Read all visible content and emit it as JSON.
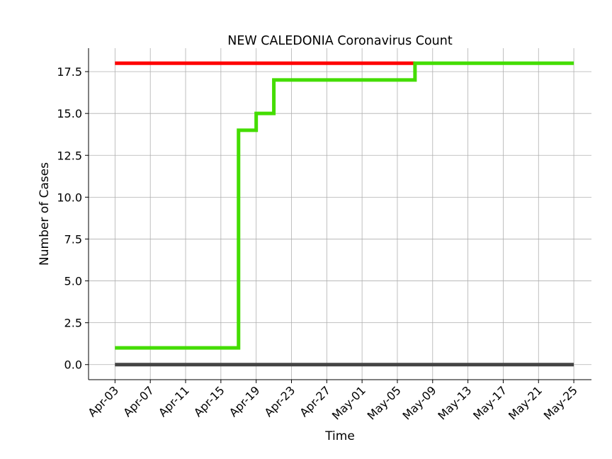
{
  "chart_data": {
    "type": "line",
    "title": "NEW CALEDONIA Coronavirus Count",
    "xlabel": "Time",
    "ylabel": "Number of Cases",
    "x_tick_labels": [
      "Apr-03",
      "Apr-07",
      "Apr-11",
      "Apr-15",
      "Apr-19",
      "Apr-23",
      "Apr-27",
      "May-01",
      "May-05",
      "May-09",
      "May-13",
      "May-17",
      "May-21",
      "May-25"
    ],
    "y_ticks": [
      0.0,
      2.5,
      5.0,
      7.5,
      10.0,
      12.5,
      15.0,
      17.5
    ],
    "y_tick_labels": [
      "0.0",
      "2.5",
      "5.0",
      "7.5",
      "10.0",
      "12.5",
      "15.0",
      "17.5"
    ],
    "ylim": [
      -0.9,
      18.9
    ],
    "xlim": [
      "2020-03-31",
      "2020-05-27"
    ],
    "grid": true,
    "series": [
      {
        "color": "#ff0000",
        "step": "post",
        "points": [
          [
            "2020-04-03",
            18
          ],
          [
            "2020-05-07",
            18
          ]
        ]
      },
      {
        "color": "#44dd00",
        "step": "post",
        "points": [
          [
            "2020-04-03",
            1
          ],
          [
            "2020-04-17",
            14
          ],
          [
            "2020-04-19",
            15
          ],
          [
            "2020-04-21",
            17
          ],
          [
            "2020-05-07",
            18
          ],
          [
            "2020-05-25",
            18
          ]
        ]
      },
      {
        "color": "#444444",
        "step": "post",
        "points": [
          [
            "2020-04-03",
            0
          ],
          [
            "2020-05-25",
            0
          ]
        ]
      }
    ]
  }
}
